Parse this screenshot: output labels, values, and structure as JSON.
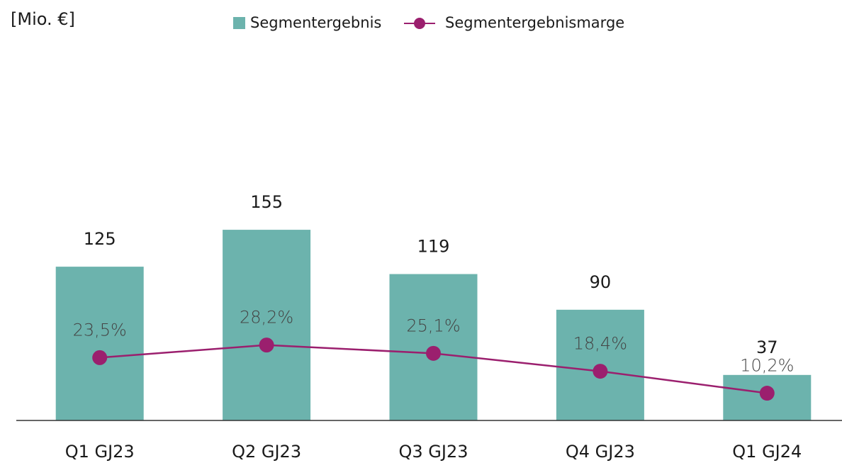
{
  "chart_data": {
    "type": "bar_line",
    "unit_label": "[Mio. €]",
    "categories": [
      "Q1 GJ23",
      "Q2 GJ23",
      "Q3 GJ23",
      "Q4 GJ23",
      "Q1 GJ24"
    ],
    "series": [
      {
        "name": "Segmentergebnis",
        "color": "#6cb3ad",
        "values": [
          125,
          155,
          119,
          90,
          37
        ]
      },
      {
        "name": "Segmentergebnismarge",
        "color": "#9b1f6e",
        "axis": "y2",
        "values": [
          23.5,
          28.2,
          25.1,
          18.4,
          10.2
        ],
        "value_labels": [
          "23,5%",
          "28,2%",
          "25,1%",
          "18,4%",
          "10,2%"
        ]
      }
    ],
    "ylim": [
      0,
      200
    ],
    "y2lim": [
      0,
      92
    ]
  }
}
